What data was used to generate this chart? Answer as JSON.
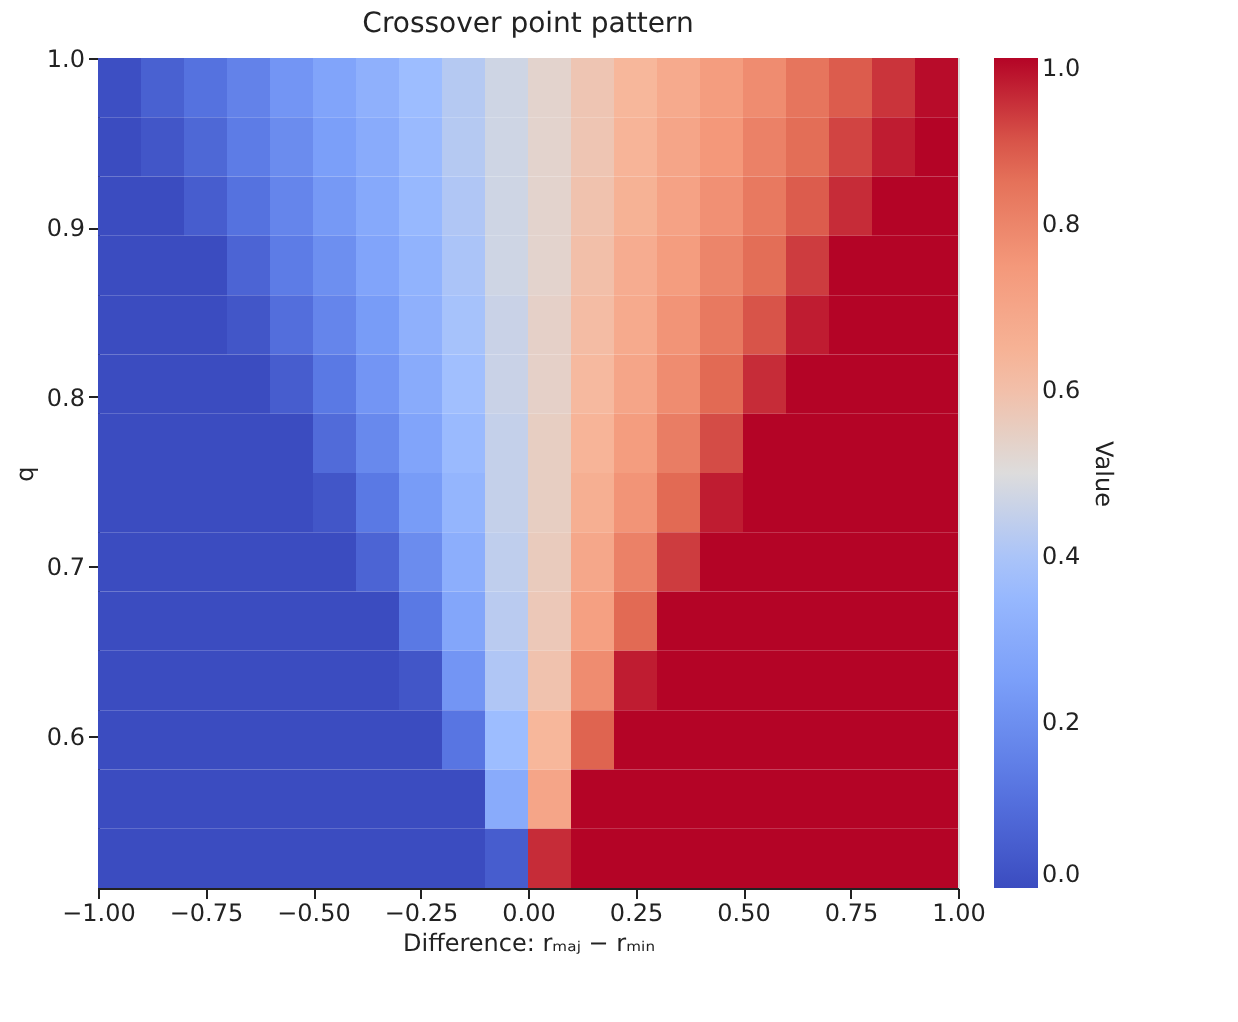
{
  "chart_data": {
    "type": "heatmap",
    "title": "Crossover point pattern",
    "xlabel": "Difference: rₘₐⱼ − rₘᵢₙ",
    "ylabel": "q",
    "clabel": "Value",
    "cells": [
      [
        0.01,
        0.06,
        0.11,
        0.16,
        0.22,
        0.27,
        0.32,
        0.37,
        0.42,
        0.47,
        0.53,
        0.58,
        0.63,
        0.68,
        0.73,
        0.78,
        0.84,
        0.89,
        0.94,
        0.99
      ],
      [
        0,
        0.03,
        0.08,
        0.14,
        0.19,
        0.25,
        0.3,
        0.36,
        0.42,
        0.47,
        0.53,
        0.58,
        0.64,
        0.7,
        0.75,
        0.81,
        0.86,
        0.92,
        0.97,
        1
      ],
      [
        0,
        0,
        0.05,
        0.11,
        0.17,
        0.23,
        0.29,
        0.35,
        0.41,
        0.47,
        0.53,
        0.59,
        0.65,
        0.71,
        0.77,
        0.83,
        0.89,
        0.95,
        1,
        1
      ],
      [
        0,
        0,
        0,
        0.07,
        0.14,
        0.2,
        0.27,
        0.33,
        0.4,
        0.47,
        0.53,
        0.6,
        0.67,
        0.73,
        0.8,
        0.86,
        0.93,
        1,
        1,
        1
      ],
      [
        0,
        0,
        0,
        0.03,
        0.1,
        0.17,
        0.24,
        0.32,
        0.39,
        0.46,
        0.54,
        0.61,
        0.68,
        0.76,
        0.83,
        0.9,
        0.97,
        1,
        1,
        1
      ],
      [
        0,
        0,
        0,
        0,
        0.05,
        0.13,
        0.22,
        0.3,
        0.38,
        0.46,
        0.54,
        0.62,
        0.7,
        0.78,
        0.87,
        0.95,
        1,
        1,
        1,
        1
      ],
      [
        0,
        0,
        0,
        0,
        0,
        0.09,
        0.18,
        0.27,
        0.36,
        0.45,
        0.55,
        0.64,
        0.73,
        0.82,
        0.91,
        1,
        1,
        1,
        1,
        1
      ],
      [
        0,
        0,
        0,
        0,
        0,
        0.03,
        0.13,
        0.24,
        0.34,
        0.45,
        0.55,
        0.66,
        0.76,
        0.87,
        0.97,
        1,
        1,
        1,
        1,
        1
      ],
      [
        0,
        0,
        0,
        0,
        0,
        0,
        0.07,
        0.19,
        0.31,
        0.44,
        0.56,
        0.69,
        0.81,
        0.93,
        1,
        1,
        1,
        1,
        1,
        1
      ],
      [
        0,
        0,
        0,
        0,
        0,
        0,
        0,
        0.13,
        0.28,
        0.43,
        0.57,
        0.72,
        0.87,
        1,
        1,
        1,
        1,
        1,
        1,
        1
      ],
      [
        0,
        0,
        0,
        0,
        0,
        0,
        0,
        0.03,
        0.22,
        0.41,
        0.59,
        0.78,
        0.97,
        1,
        1,
        1,
        1,
        1,
        1,
        1
      ],
      [
        0,
        0,
        0,
        0,
        0,
        0,
        0,
        0,
        0.12,
        0.37,
        0.63,
        0.88,
        1,
        1,
        1,
        1,
        1,
        1,
        1,
        1
      ],
      [
        0,
        0,
        0,
        0,
        0,
        0,
        0,
        0,
        0,
        0.3,
        0.7,
        1,
        1,
        1,
        1,
        1,
        1,
        1,
        1,
        1
      ],
      [
        0,
        0,
        0,
        0,
        0,
        0,
        0,
        0,
        0,
        0.05,
        0.95,
        1,
        1,
        1,
        1,
        1,
        1,
        1,
        1,
        1
      ]
    ],
    "xlim": [
      -1.0,
      1.0
    ],
    "xticks": [
      {
        "value": -1.0,
        "label": "−1.00"
      },
      {
        "value": -0.75,
        "label": "−0.75"
      },
      {
        "value": -0.5,
        "label": "−0.50"
      },
      {
        "value": -0.25,
        "label": "−0.25"
      },
      {
        "value": 0.0,
        "label": "0.00"
      },
      {
        "value": 0.25,
        "label": "0.25"
      },
      {
        "value": 0.5,
        "label": "0.50"
      },
      {
        "value": 0.75,
        "label": "0.75"
      },
      {
        "value": 1.0,
        "label": "1.00"
      }
    ],
    "ylim": [
      0.51,
      1.0
    ],
    "yticks": [
      {
        "value": 0.6,
        "label": "0.6"
      },
      {
        "value": 0.7,
        "label": "0.7"
      },
      {
        "value": 0.8,
        "label": "0.8"
      },
      {
        "value": 0.9,
        "label": "0.9"
      },
      {
        "value": 1.0,
        "label": "1.0"
      }
    ],
    "clim": [
      0.0,
      1.0
    ],
    "cticks": [
      {
        "value": 0.0,
        "label": "0.0"
      },
      {
        "value": 0.2,
        "label": "0.2"
      },
      {
        "value": 0.4,
        "label": "0.4"
      },
      {
        "value": 0.6,
        "label": "0.6"
      },
      {
        "value": 0.8,
        "label": "0.8"
      },
      {
        "value": 1.0,
        "label": "1.0"
      }
    ],
    "grid": false
  }
}
